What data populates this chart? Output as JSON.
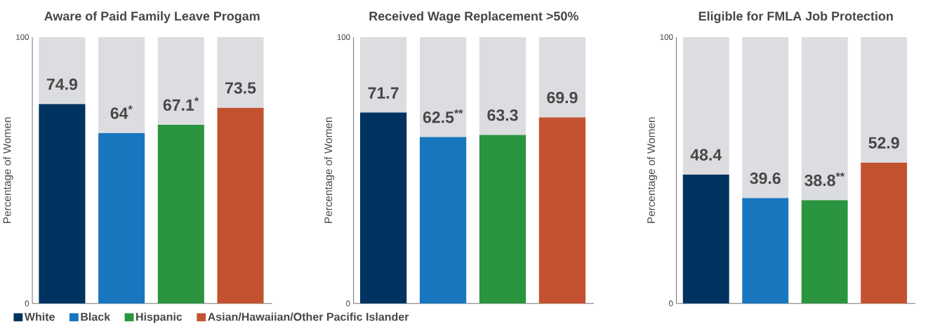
{
  "chart_data": [
    {
      "type": "bar",
      "stacked": true,
      "title": "Aware of Paid Family Leave Progam",
      "ylabel": "Percentage of Women",
      "ylim": [
        0,
        100
      ],
      "yticks": [
        0,
        100
      ],
      "legend": "bottom",
      "categories": [
        null,
        null,
        null,
        null
      ],
      "series": [
        {
          "name": "White",
          "color": "#00335f",
          "values": [
            74.9,
            null,
            null,
            null
          ],
          "value_labels": [
            "74.9",
            null,
            null,
            null
          ]
        },
        {
          "name": "Black",
          "color": "#1776be",
          "values": [
            null,
            64,
            null,
            null
          ],
          "value_labels": [
            null,
            "64$^{*}$",
            null,
            null
          ]
        },
        {
          "name": "Hispanic",
          "color": "#2b943e",
          "values": [
            null,
            null,
            67.1,
            null
          ],
          "value_labels": [
            null,
            null,
            "67.1$^{*}$",
            null
          ]
        },
        {
          "name": "Asian/Hawaiian/Other Pacific Islander",
          "color": "#c35231",
          "values": [
            null,
            null,
            null,
            73.5
          ],
          "value_labels": [
            null,
            null,
            null,
            "73.5"
          ]
        },
        {
          "color": "#dcdde0",
          "values": [
            25.1,
            36,
            32.9,
            26.5
          ]
        }
      ]
    },
    {
      "type": "bar",
      "stacked": true,
      "title": "Received Wage Replacement >50%",
      "ylabel": "Percentage of Women",
      "ylim": [
        0,
        100
      ],
      "yticks": [
        0,
        100
      ],
      "categories": [
        null,
        null,
        null,
        null
      ],
      "series": [
        {
          "color": "#00335f",
          "values": [
            71.7,
            null,
            null,
            null
          ],
          "value_labels": [
            "71.7",
            null,
            null,
            null
          ]
        },
        {
          "color": "#1776be",
          "values": [
            null,
            62.5,
            null,
            null
          ],
          "value_labels": [
            null,
            "62.5$^{**}$",
            null,
            null
          ]
        },
        {
          "color": "#2b943e",
          "values": [
            null,
            null,
            63.3,
            null
          ],
          "value_labels": [
            null,
            null,
            "63.3",
            null
          ]
        },
        {
          "color": "#c35231",
          "values": [
            null,
            null,
            null,
            69.9
          ],
          "value_labels": [
            null,
            null,
            null,
            "69.9"
          ]
        },
        {
          "color": "#dcdde0",
          "values": [
            28.3,
            37.5,
            36.7,
            30.1
          ]
        }
      ]
    },
    {
      "type": "bar",
      "stacked": true,
      "title": "Eligible for FMLA Job Protection",
      "ylabel": "Percentage of Women",
      "ylim": [
        0,
        100
      ],
      "yticks": [
        0,
        100
      ],
      "categories": [
        null,
        null,
        null,
        null
      ],
      "series": [
        {
          "color": "#00335f",
          "values": [
            48.4,
            null,
            null,
            null
          ],
          "value_labels": [
            "48.4",
            null,
            null,
            null
          ]
        },
        {
          "color": "#1776be",
          "values": [
            null,
            39.6,
            null,
            null
          ],
          "value_labels": [
            null,
            "39.6",
            null,
            null
          ]
        },
        {
          "color": "#2b943e",
          "values": [
            null,
            null,
            38.8,
            null
          ],
          "value_labels": [
            null,
            null,
            "38.8$^{**}$",
            null
          ]
        },
        {
          "color": "#c35231",
          "values": [
            null,
            null,
            null,
            52.9
          ],
          "value_labels": [
            null,
            null,
            null,
            "52.9"
          ]
        },
        {
          "color": "#dcdde0",
          "values": [
            51.6,
            60.4,
            61.2,
            47.1
          ]
        }
      ]
    }
  ]
}
